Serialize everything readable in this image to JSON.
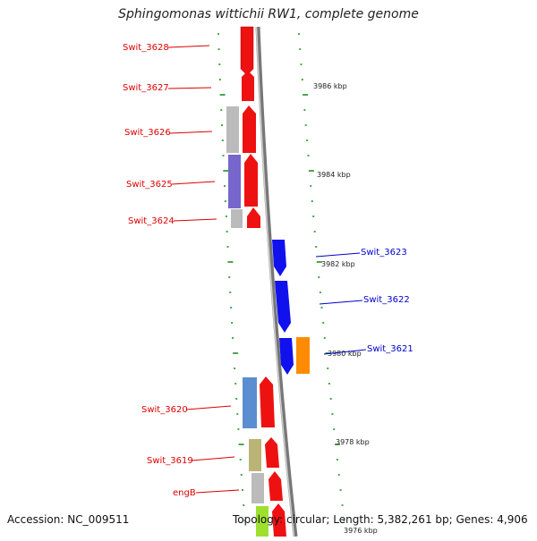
{
  "title": "Sphingomonas wittichii RW1, complete genome",
  "footer": {
    "accession": "Accession: NC_009511",
    "topology": "Topology: circular; Length: 5,382,261 bp; Genes: 4,906"
  },
  "colors": {
    "red": "#ee1111",
    "blue": "#1111ee",
    "orange": "#ff8c00",
    "grey_backbone": "#888888",
    "tick_green": "#118811",
    "label_red": "#dd0000",
    "label_blue": "#0000cc"
  },
  "scale_labels": [
    "3986 kbp",
    "3984 kbp",
    "3982 kbp",
    "3980 kbp",
    "3978 kbp",
    "3976 kbp"
  ],
  "gene_labels_left": [
    "Swit_3628",
    "Swit_3627",
    "Swit_3626",
    "Swit_3625",
    "Swit_3624",
    "Swit_3620",
    "Swit_3619",
    "engB"
  ],
  "gene_labels_right": [
    "Swit_3623",
    "Swit_3622",
    "Swit_3621"
  ]
}
